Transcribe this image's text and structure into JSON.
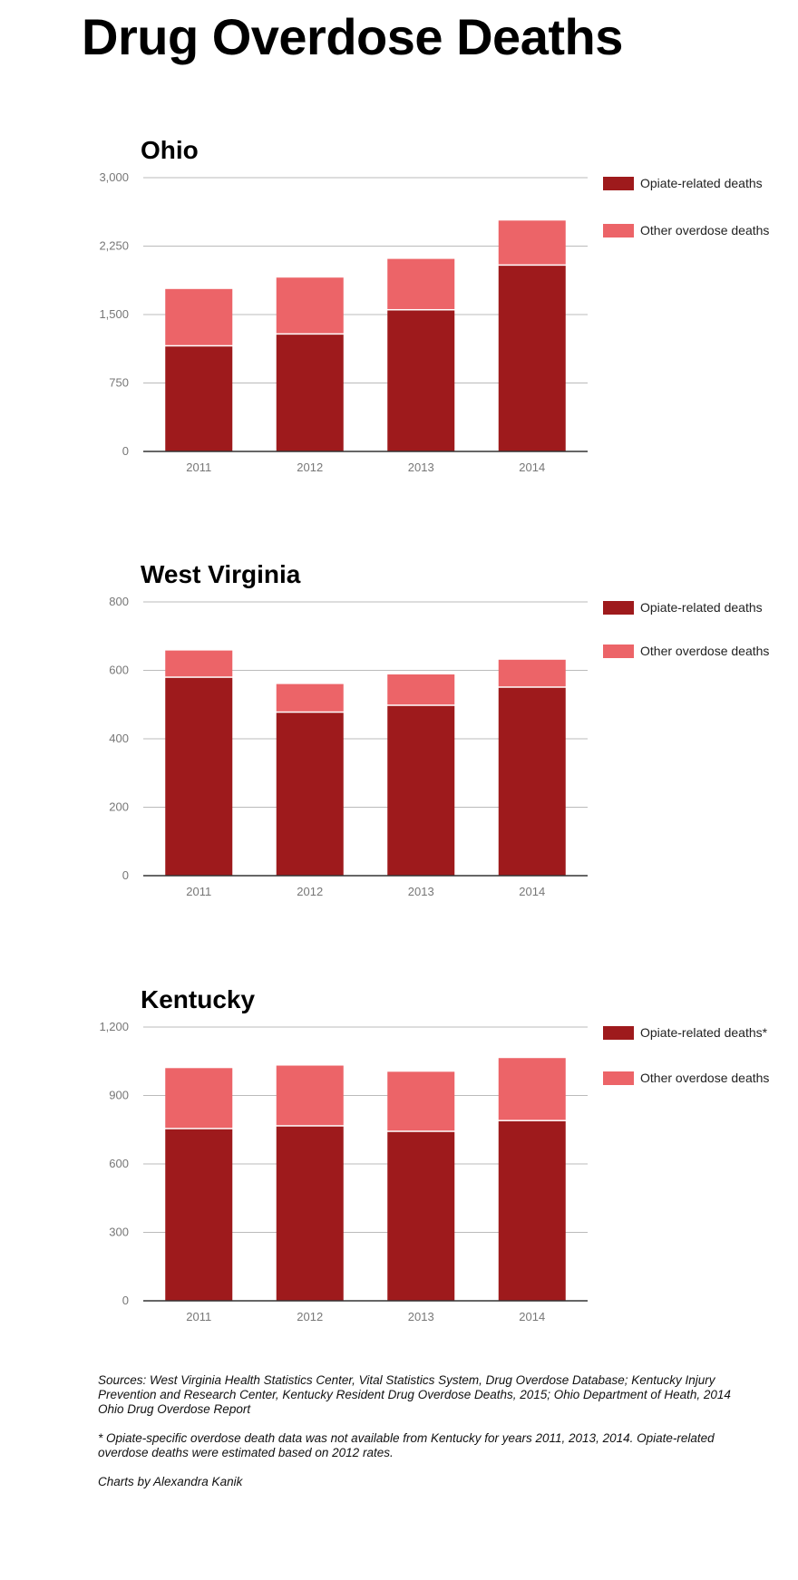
{
  "title": "Drug Overdose Deaths",
  "colors": {
    "opiate": "#9e1a1c",
    "other": "#ec6468",
    "grid": "#bbbbbb",
    "axis": "#333333"
  },
  "chart_data": [
    {
      "type": "bar",
      "stacked": true,
      "title": "Ohio",
      "categories": [
        "2011",
        "2012",
        "2013",
        "2014"
      ],
      "series": [
        {
          "name": "Opiate-related deaths",
          "values": [
            1150,
            1280,
            1545,
            2035
          ]
        },
        {
          "name": "Other overdose deaths",
          "values": [
            630,
            625,
            565,
            495
          ]
        }
      ],
      "ylim": [
        0,
        3000
      ],
      "yticks": [
        0,
        750,
        1500,
        2250,
        3000
      ],
      "ytick_labels": [
        "0",
        "750",
        "1,500",
        "2,250",
        "3,000"
      ],
      "grid": true,
      "legend": "right",
      "legend_labels": [
        "Opiate-related deaths",
        "Other overdose deaths"
      ]
    },
    {
      "type": "bar",
      "stacked": true,
      "title": "West Virginia",
      "categories": [
        "2011",
        "2012",
        "2013",
        "2014"
      ],
      "series": [
        {
          "name": "Opiate-related deaths",
          "values": [
            578,
            476,
            496,
            549
          ]
        },
        {
          "name": "Other overdose deaths",
          "values": [
            80,
            84,
            92,
            82
          ]
        }
      ],
      "ylim": [
        0,
        800
      ],
      "yticks": [
        0,
        200,
        400,
        600,
        800
      ],
      "ytick_labels": [
        "0",
        "200",
        "400",
        "600",
        "800"
      ],
      "grid": true,
      "legend": "right",
      "legend_labels": [
        "Opiate-related deaths",
        "Other overdose deaths"
      ]
    },
    {
      "type": "bar",
      "stacked": true,
      "title": "Kentucky",
      "categories": [
        "2011",
        "2012",
        "2013",
        "2014"
      ],
      "series": [
        {
          "name": "Opiate-related deaths*",
          "values": [
            752,
            764,
            740,
            787
          ]
        },
        {
          "name": "Other overdose deaths",
          "values": [
            268,
            267,
            264,
            277
          ]
        }
      ],
      "ylim": [
        0,
        1200
      ],
      "yticks": [
        0,
        300,
        600,
        900,
        1200
      ],
      "ytick_labels": [
        "0",
        "300",
        "600",
        "900",
        "1,200"
      ],
      "grid": true,
      "legend": "right",
      "legend_labels": [
        "Opiate-related deaths*",
        "Other overdose deaths"
      ]
    }
  ],
  "footer": {
    "sources": "Sources: West Virginia Health Statistics Center, Vital Statistics System, Drug Overdose Database; Kentucky Injury Prevention and Research Center, Kentucky Resident Drug Overdose Deaths, 2015; Ohio Department of Heath, 2014 Ohio Drug Overdose Report",
    "note": "* Opiate-specific overdose death data was not available from Kentucky for years 2011, 2013, 2014. Opiate-related overdose deaths were estimated based on 2012 rates.",
    "credit": "Charts by Alexandra Kanik"
  }
}
